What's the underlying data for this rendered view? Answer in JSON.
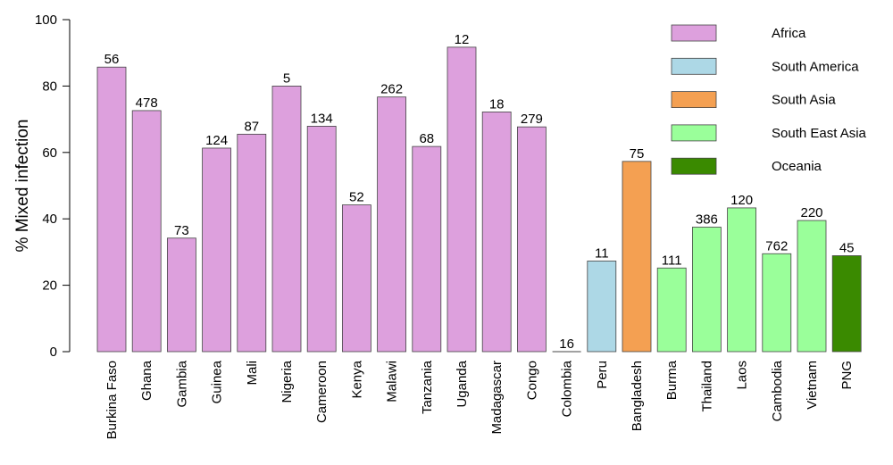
{
  "chart_data": {
    "type": "bar",
    "ylabel": "% Mixed infection",
    "ylim": [
      0,
      100
    ],
    "yticks": [
      0,
      20,
      40,
      60,
      80,
      100
    ],
    "grid": false,
    "legend_position": "top-right",
    "regions": [
      {
        "name": "Africa",
        "color": "#dda0dd"
      },
      {
        "name": "South America",
        "color": "#add8e6"
      },
      {
        "name": "South Asia",
        "color": "#f4a052"
      },
      {
        "name": "South East Asia",
        "color": "#9aff9a"
      },
      {
        "name": "Oceania",
        "color": "#3a8a00"
      }
    ],
    "bars": [
      {
        "category": "Burkina Faso",
        "value": 85.7,
        "label": "56",
        "region": 0
      },
      {
        "category": "Ghana",
        "value": 72.6,
        "label": "478",
        "region": 0
      },
      {
        "category": "Gambia",
        "value": 34.2,
        "label": "73",
        "region": 0
      },
      {
        "category": "Guinea",
        "value": 61.3,
        "label": "124",
        "region": 0
      },
      {
        "category": "Mali",
        "value": 65.5,
        "label": "87",
        "region": 0
      },
      {
        "category": "Nigeria",
        "value": 80.0,
        "label": "5",
        "region": 0
      },
      {
        "category": "Cameroon",
        "value": 67.9,
        "label": "134",
        "region": 0
      },
      {
        "category": "Kenya",
        "value": 44.2,
        "label": "52",
        "region": 0
      },
      {
        "category": "Malawi",
        "value": 76.7,
        "label": "262",
        "region": 0
      },
      {
        "category": "Tanzania",
        "value": 61.8,
        "label": "68",
        "region": 0
      },
      {
        "category": "Uganda",
        "value": 91.7,
        "label": "12",
        "region": 0
      },
      {
        "category": "Madagascar",
        "value": 72.2,
        "label": "18",
        "region": 0
      },
      {
        "category": "Congo",
        "value": 67.7,
        "label": "279",
        "region": 0
      },
      {
        "category": "Colombia",
        "value": 0.0,
        "label": "16",
        "region": 1
      },
      {
        "category": "Peru",
        "value": 27.3,
        "label": "11",
        "region": 1
      },
      {
        "category": "Bangladesh",
        "value": 57.3,
        "label": "75",
        "region": 2
      },
      {
        "category": "Burma",
        "value": 25.2,
        "label": "111",
        "region": 3
      },
      {
        "category": "Thailand",
        "value": 37.5,
        "label": "386",
        "region": 3
      },
      {
        "category": "Laos",
        "value": 43.3,
        "label": "120",
        "region": 3
      },
      {
        "category": "Cambodia",
        "value": 29.5,
        "label": "762",
        "region": 3
      },
      {
        "category": "Vietnam",
        "value": 39.5,
        "label": "220",
        "region": 3
      },
      {
        "category": "PNG",
        "value": 28.9,
        "label": "45",
        "region": 4
      }
    ]
  }
}
